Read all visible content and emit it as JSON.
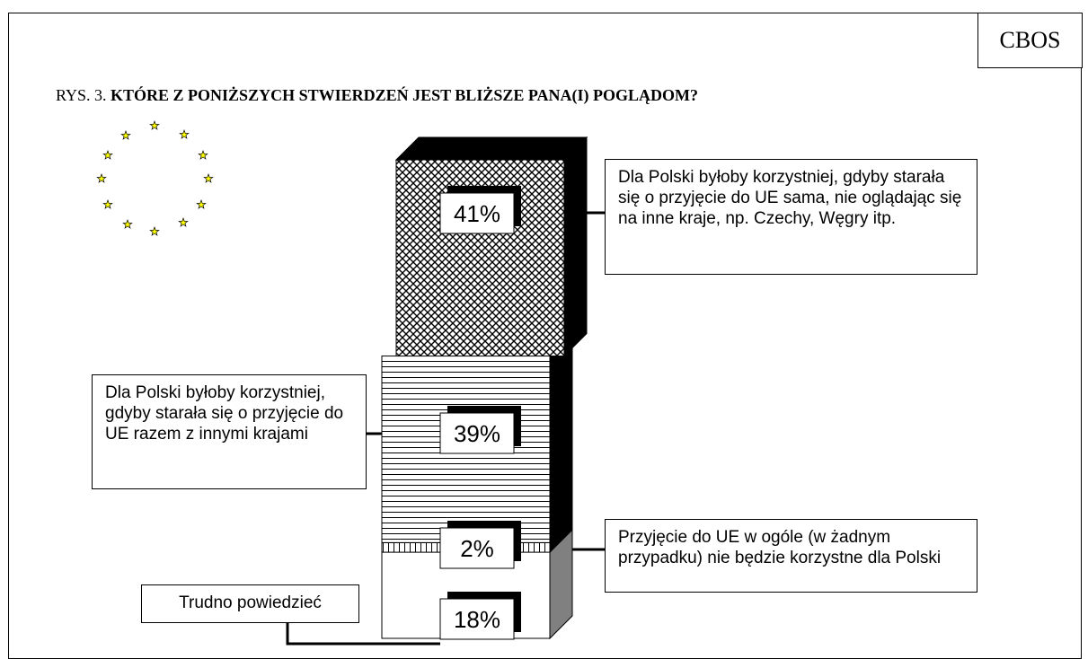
{
  "chart_data": {
    "type": "stacked-column-3d",
    "source": "CBOS",
    "figure_label": "RYS. 3.",
    "title": "KTÓRE Z PONIŻSZYCH STWIERDZEŃ JEST BLIŻSZE PANA(I) POGLĄDOM?",
    "series": [
      {
        "name": "Dla Polski byłoby korzystniej, gdyby starała się o przyjęcie do UE sama, nie oglądając się na inne kraje, np. Czechy, Węgry itp.",
        "values": [
          41
        ],
        "value_labels": [
          "41%"
        ],
        "pattern": "crosshatch",
        "color": "#000000",
        "side_color": "#000000"
      },
      {
        "name": "Dla Polski byłoby korzystniej, gdyby starała się o przyjęcie do UE razem z innymi krajami",
        "values": [
          39
        ],
        "value_labels": [
          "39%"
        ],
        "pattern": "hlines",
        "color": "#000000",
        "side_color": "#000000"
      },
      {
        "name": "Przyjęcie do UE w ogóle (w żadnym przypadku) nie będzie korzystne dla Polski",
        "values": [
          2
        ],
        "value_labels": [
          "2%"
        ],
        "pattern": "vlines",
        "color": "#000000",
        "side_color": "#000000"
      },
      {
        "name": "Trudno powiedzieć",
        "values": [
          18
        ],
        "value_labels": [
          "18%"
        ],
        "pattern": "none",
        "color": "#ffffff",
        "side_color": "#808080"
      }
    ]
  }
}
